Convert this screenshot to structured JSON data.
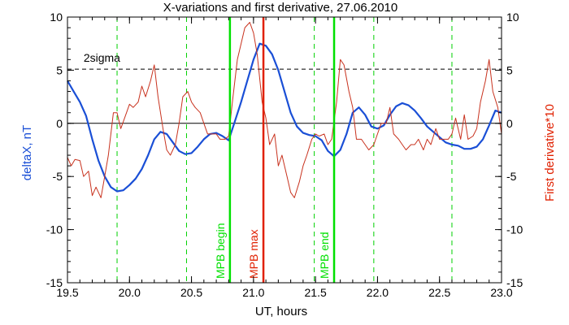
{
  "chart_data": {
    "type": "line",
    "title": "X-variations and first derivative, 27.06.2010",
    "xlabel": "UT, hours",
    "ylabel_left": "deltaX, nT",
    "ylabel_right": "First derivative*10",
    "xlim": [
      19.5,
      23.0
    ],
    "ylim_left": [
      -15,
      10
    ],
    "ylim_right": [
      -15,
      10
    ],
    "x_ticks": [
      "19.5",
      "20.0",
      "20.5",
      "21.0",
      "21.5",
      "22.0",
      "22.5",
      "23.0"
    ],
    "y_ticks_left": [
      "10",
      "5",
      "0",
      "-5",
      "-10",
      "-15"
    ],
    "y_ticks_right": [
      "10",
      "5",
      "0",
      "-5",
      "-10",
      "-15"
    ],
    "sigma_level": 5.1,
    "sigma_label": "2sigma",
    "zero_line": 0,
    "dashed_markers_x": [
      19.9,
      20.46,
      21.49,
      21.97,
      22.6
    ],
    "event_lines": [
      {
        "x": 20.81,
        "label": "MPB begin",
        "color": "#00e000"
      },
      {
        "x": 21.08,
        "label": "MPB max",
        "color": "#e02000"
      },
      {
        "x": 21.65,
        "label": "MPB end",
        "color": "#00e000"
      }
    ],
    "series": [
      {
        "name": "deltaX, nT",
        "color": "#1a4fd6",
        "axis": "left",
        "x": [
          19.5,
          19.55,
          19.6,
          19.65,
          19.7,
          19.75,
          19.8,
          19.85,
          19.9,
          19.95,
          20.0,
          20.05,
          20.1,
          20.15,
          20.2,
          20.25,
          20.3,
          20.35,
          20.4,
          20.45,
          20.5,
          20.55,
          20.6,
          20.65,
          20.7,
          20.75,
          20.8,
          20.85,
          20.9,
          20.95,
          21.0,
          21.05,
          21.1,
          21.15,
          21.2,
          21.25,
          21.3,
          21.35,
          21.4,
          21.45,
          21.5,
          21.55,
          21.6,
          21.65,
          21.7,
          21.75,
          21.8,
          21.85,
          21.9,
          21.95,
          22.0,
          22.05,
          22.1,
          22.15,
          22.2,
          22.25,
          22.3,
          22.35,
          22.4,
          22.45,
          22.5,
          22.55,
          22.6,
          22.65,
          22.7,
          22.75,
          22.8,
          22.85,
          22.9,
          22.95,
          23.0
        ],
        "values": [
          4.0,
          3.0,
          2.0,
          0.7,
          -1.5,
          -3.5,
          -5.0,
          -6.0,
          -6.4,
          -6.3,
          -5.8,
          -5.2,
          -4.3,
          -3.0,
          -1.5,
          -0.8,
          -1.0,
          -1.8,
          -2.6,
          -2.9,
          -2.8,
          -2.2,
          -1.5,
          -1.0,
          -0.9,
          -1.2,
          -1.6,
          0.2,
          2.0,
          4.0,
          6.0,
          7.5,
          7.3,
          6.5,
          5.0,
          3.0,
          1.0,
          -0.3,
          -0.9,
          -1.1,
          -1.2,
          -1.6,
          -2.6,
          -3.1,
          -2.5,
          -1.0,
          1.0,
          1.5,
          0.8,
          -0.3,
          -0.5,
          -0.2,
          0.8,
          1.6,
          1.9,
          1.7,
          1.2,
          0.5,
          -0.3,
          -0.8,
          -1.3,
          -1.8,
          -2.0,
          -2.1,
          -2.4,
          -2.4,
          -2.2,
          -1.5,
          -0.2,
          1.2,
          1.0
        ]
      },
      {
        "name": "First derivative*10",
        "color": "#c8321e",
        "axis": "right",
        "x": [
          19.5,
          19.53,
          19.56,
          19.6,
          19.63,
          19.67,
          19.7,
          19.73,
          19.77,
          19.8,
          19.83,
          19.87,
          19.9,
          19.93,
          19.97,
          20.0,
          20.03,
          20.07,
          20.1,
          20.13,
          20.17,
          20.2,
          20.23,
          20.27,
          20.3,
          20.33,
          20.37,
          20.4,
          20.43,
          20.47,
          20.5,
          20.53,
          20.57,
          20.6,
          20.63,
          20.67,
          20.7,
          20.73,
          20.77,
          20.8,
          20.83,
          20.87,
          20.9,
          20.93,
          20.97,
          21.0,
          21.03,
          21.07,
          21.1,
          21.13,
          21.17,
          21.2,
          21.23,
          21.27,
          21.3,
          21.33,
          21.37,
          21.4,
          21.43,
          21.47,
          21.5,
          21.53,
          21.57,
          21.6,
          21.63,
          21.67,
          21.7,
          21.73,
          21.77,
          21.8,
          21.83,
          21.87,
          21.9,
          21.93,
          21.97,
          22.0,
          22.03,
          22.07,
          22.1,
          22.13,
          22.17,
          22.2,
          22.23,
          22.27,
          22.3,
          22.33,
          22.37,
          22.4,
          22.43,
          22.47,
          22.5,
          22.53,
          22.57,
          22.6,
          22.63,
          22.67,
          22.7,
          22.73,
          22.77,
          22.8,
          22.83,
          22.87,
          22.9,
          22.93,
          22.97,
          23.0
        ],
        "values": [
          -3.2,
          -4.0,
          -3.4,
          -3.5,
          -5.0,
          -4.5,
          -6.8,
          -6.0,
          -7.0,
          -5.0,
          -3.0,
          1.0,
          1.0,
          -0.5,
          0.8,
          1.8,
          1.5,
          2.0,
          3.5,
          2.5,
          4.0,
          5.5,
          2.5,
          -0.5,
          -2.5,
          -3.0,
          -2.0,
          0.0,
          2.5,
          3.0,
          2.0,
          1.5,
          1.0,
          0.0,
          -1.0,
          -1.0,
          -1.0,
          -1.5,
          -1.5,
          -1.2,
          2.0,
          6.0,
          7.5,
          9.0,
          9.5,
          8.5,
          6.5,
          2.0,
          0.5,
          -2.0,
          -1.0,
          -4.0,
          -3.0,
          -5.0,
          -6.5,
          -7.0,
          -5.5,
          -4.0,
          -3.0,
          -1.5,
          -1.0,
          -1.2,
          -1.0,
          -2.0,
          -1.5,
          2.0,
          6.0,
          5.5,
          3.0,
          1.5,
          -1.5,
          -1.5,
          -2.0,
          -2.5,
          -2.0,
          -1.0,
          0.0,
          0.0,
          1.5,
          -1.0,
          -1.5,
          -2.0,
          -2.5,
          -2.0,
          -2.0,
          -1.5,
          -2.5,
          -1.5,
          -2.0,
          -0.5,
          -1.5,
          -1.5,
          -1.5,
          -1.0,
          0.5,
          -1.5,
          0.8,
          -1.5,
          -1.2,
          -0.5,
          2.0,
          4.0,
          6.0,
          3.0,
          1.5,
          -1.0
        ]
      }
    ],
    "grid": false
  }
}
